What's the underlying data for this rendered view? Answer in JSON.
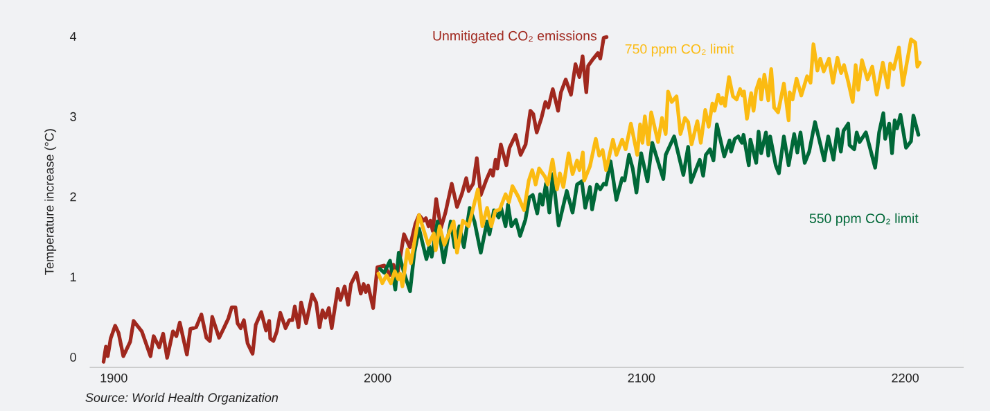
{
  "chart_data": {
    "type": "line",
    "ylabel": "Temperature increase (°C)",
    "xlim": [
      1891,
      2222
    ],
    "ylim": [
      -0.13,
      4
    ],
    "xticks": [
      1900,
      2000,
      2100,
      2200
    ],
    "yticks": [
      0,
      1,
      2,
      3,
      4
    ],
    "grid": false,
    "legend": false,
    "marker": "none",
    "line_style": "solid",
    "series": [
      {
        "name": "Unmitigated CO₂ emissions",
        "color": "#a0281e",
        "x": [
          1896.1,
          1897.0,
          1897.7,
          1898.8,
          1900.5,
          1901.8,
          1903.6,
          1906.2,
          1907.5,
          1910.6,
          1913.9,
          1915.1,
          1917.2,
          1918.7,
          1920.2,
          1922.4,
          1923.7,
          1925.0,
          1927.7,
          1929.0,
          1931.2,
          1933.2,
          1935.1,
          1936.4,
          1937.3,
          1939.9,
          1941.7,
          1943.4,
          1944.7,
          1946.1,
          1946.9,
          1948.1,
          1949.3,
          1950.7,
          1952.6,
          1953.8,
          1955.9,
          1957.7,
          1958.9,
          1959.3,
          1960.5,
          1961.8,
          1963.1,
          1965.1,
          1966.5,
          1967.7,
          1968.6,
          1970.0,
          1971.0,
          1972.9,
          1975.2,
          1976.7,
          1978.0,
          1979.1,
          1980.2,
          1981.5,
          1982.6,
          1984.9,
          1985.9,
          1987.5,
          1988.8,
          1989.9,
          1992.0,
          1993.6,
          1994.7,
          1995.5,
          1996.4,
          1998.3,
          1999.9,
          2002.5,
          2004.7,
          2006.0,
          2007.3,
          2008.2,
          2010.0,
          2012.2,
          2014.3,
          2015.7,
          2017.4,
          2018.3,
          2019.3,
          2020.0,
          2020.9,
          2022.2,
          2024.0,
          2025.7,
          2028.1,
          2030.1,
          2031.9,
          2033.6,
          2034.5,
          2036.2,
          2037.6,
          2039.1,
          2041.1,
          2042.8,
          2043.7,
          2044.7,
          2045.4,
          2046.7,
          2048.8,
          2050.0,
          2052.3,
          2054.2,
          2056.1,
          2057.9,
          2059.0,
          2060.3,
          2062.1,
          2063.6,
          2064.7,
          2066.4,
          2068.4,
          2069.5,
          2071.3,
          2073.3,
          2075.0,
          2076.5,
          2077.7,
          2079.1,
          2079.8,
          2081.3,
          2083.5,
          2084.4,
          2085.7,
          2086.8
        ],
        "values": [
          -0.06,
          0.13,
          0.01,
          0.23,
          0.39,
          0.3,
          0.01,
          0.19,
          0.45,
          0.32,
          0.01,
          0.26,
          0.12,
          0.29,
          -0.01,
          0.32,
          0.26,
          0.43,
          0.03,
          0.35,
          0.37,
          0.53,
          0.24,
          0.2,
          0.5,
          0.24,
          0.36,
          0.48,
          0.62,
          0.62,
          0.42,
          0.36,
          0.46,
          0.17,
          0.04,
          0.4,
          0.56,
          0.33,
          0.45,
          0.23,
          0.2,
          0.32,
          0.55,
          0.36,
          0.46,
          0.46,
          0.63,
          0.37,
          0.68,
          0.42,
          0.78,
          0.68,
          0.37,
          0.58,
          0.49,
          0.61,
          0.36,
          0.85,
          0.71,
          0.88,
          0.65,
          0.91,
          1.05,
          0.79,
          0.91,
          0.81,
          0.89,
          0.61,
          1.12,
          1.14,
          1.02,
          1.15,
          0.99,
          1.17,
          1.53,
          1.37,
          1.66,
          1.77,
          1.7,
          1.73,
          1.63,
          1.7,
          1.57,
          1.97,
          1.61,
          1.8,
          2.16,
          1.87,
          2.03,
          2.23,
          2.07,
          2.16,
          2.48,
          2.02,
          2.2,
          2.33,
          2.26,
          2.46,
          2.35,
          2.65,
          2.39,
          2.61,
          2.77,
          2.52,
          2.65,
          3.07,
          3.03,
          2.8,
          2.98,
          3.18,
          3.11,
          3.34,
          3.07,
          3.3,
          3.46,
          3.27,
          3.65,
          3.49,
          3.75,
          3.3,
          3.63,
          3.7,
          3.79,
          3.72,
          3.98,
          3.99
        ]
      },
      {
        "name": "550 ppm CO₂ limit",
        "color": "#006838",
        "x": [
          2000.8,
          2002.5,
          2004.7,
          2006.7,
          2008.0,
          2010.0,
          2012.3,
          2013.9,
          2015.7,
          2018.5,
          2019.6,
          2020.5,
          2022.7,
          2025.1,
          2027.7,
          2029.2,
          2031.0,
          2032.7,
          2034.9,
          2036.7,
          2039.1,
          2041.5,
          2042.4,
          2044.1,
          2045.9,
          2046.8,
          2048.5,
          2049.4,
          2050.7,
          2052.4,
          2054.0,
          2056.0,
          2057.5,
          2058.8,
          2060.5,
          2061.6,
          2062.5,
          2063.8,
          2065.1,
          2066.4,
          2068.6,
          2071.7,
          2073.9,
          2075.6,
          2077.4,
          2078.7,
          2080.5,
          2081.3,
          2083.1,
          2084.4,
          2085.7,
          2086.6,
          2088.3,
          2090.5,
          2092.7,
          2093.6,
          2095.3,
          2096.7,
          2098.1,
          2099.9,
          2102.3,
          2104.1,
          2108.3,
          2109.2,
          2112.4,
          2115.9,
          2117.7,
          2118.8,
          2122.1,
          2123.4,
          2124.4,
          2126.0,
          2127.3,
          2128.6,
          2131.4,
          2133.4,
          2134.0,
          2135.4,
          2136.7,
          2138.1,
          2138.7,
          2140.7,
          2141.3,
          2143.5,
          2144.4,
          2145.4,
          2147.2,
          2148.1,
          2148.8,
          2150.9,
          2152.1,
          2154.0,
          2155.8,
          2157.9,
          2159.1,
          2160.3,
          2161.9,
          2163.6,
          2165.8,
          2169.3,
          2170.8,
          2172.8,
          2174.3,
          2175.6,
          2176.6,
          2178.4,
          2178.9,
          2180.7,
          2181.6,
          2182.7,
          2185.1,
          2188.6,
          2190.1,
          2191.7,
          2192.4,
          2193.9,
          2195.0,
          2196.0,
          2196.9,
          2198.2,
          2200.3,
          2202.2,
          2203.1,
          2205.0
        ],
        "values": [
          1.1,
          1.05,
          1.2,
          0.84,
          1.3,
          1.05,
          0.82,
          1.3,
          1.6,
          1.22,
          1.38,
          1.25,
          1.69,
          1.18,
          1.69,
          1.37,
          1.63,
          1.37,
          1.86,
          1.69,
          1.3,
          1.69,
          1.53,
          1.83,
          1.74,
          1.86,
          1.63,
          1.9,
          1.63,
          1.71,
          1.51,
          1.71,
          1.99,
          2.02,
          1.79,
          2.03,
          1.9,
          2.16,
          1.8,
          2.28,
          1.64,
          2.07,
          1.8,
          2.15,
          2.19,
          1.86,
          2.12,
          1.84,
          2.15,
          2.09,
          2.16,
          2.15,
          2.44,
          1.96,
          2.23,
          2.2,
          2.52,
          2.35,
          2.05,
          2.54,
          2.19,
          2.67,
          2.22,
          2.52,
          2.75,
          2.27,
          2.62,
          2.18,
          2.46,
          2.26,
          2.52,
          2.59,
          2.45,
          2.9,
          2.5,
          2.7,
          2.56,
          2.72,
          2.75,
          2.67,
          2.77,
          2.39,
          2.71,
          2.42,
          2.81,
          2.54,
          2.8,
          2.51,
          2.75,
          2.39,
          2.29,
          2.75,
          2.39,
          2.78,
          2.55,
          2.8,
          2.42,
          2.56,
          2.93,
          2.45,
          2.75,
          2.46,
          2.84,
          2.56,
          2.82,
          2.91,
          2.64,
          2.59,
          2.8,
          2.68,
          2.8,
          2.36,
          2.8,
          3.04,
          2.72,
          2.91,
          2.54,
          2.95,
          2.85,
          3.02,
          2.61,
          2.69,
          3.01,
          2.77
        ]
      },
      {
        "name": "750 ppm CO₂ limit",
        "color": "#fbbb12",
        "x": [
          2000.3,
          2001.8,
          2003.4,
          2005.0,
          2006.5,
          2007.8,
          2008.5,
          2009.4,
          2011.3,
          2012.6,
          2015.7,
          2019.2,
          2021.3,
          2022.0,
          2023.5,
          2025.3,
          2028.8,
          2030.1,
          2032.3,
          2034.5,
          2038.0,
          2039.7,
          2041.5,
          2043.1,
          2044.6,
          2046.3,
          2048.5,
          2049.8,
          2051.1,
          2053.3,
          2055.5,
          2057.3,
          2058.6,
          2059.9,
          2061.2,
          2063.4,
          2064.5,
          2066.3,
          2068.0,
          2069.1,
          2070.4,
          2072.4,
          2073.9,
          2075.6,
          2076.5,
          2077.8,
          2078.3,
          2080.5,
          2082.7,
          2084.0,
          2085.3,
          2086.6,
          2089.2,
          2090.5,
          2092.7,
          2094.0,
          2096.0,
          2098.4,
          2099.5,
          2100.4,
          2101.3,
          2102.6,
          2103.7,
          2106.3,
          2107.8,
          2109.2,
          2110.1,
          2111.5,
          2113.3,
          2114.8,
          2116.5,
          2117.7,
          2119.0,
          2121.2,
          2122.5,
          2124.2,
          2125.5,
          2126.9,
          2127.7,
          2129.1,
          2130.2,
          2130.8,
          2131.7,
          2133.2,
          2134.7,
          2136.1,
          2137.4,
          2138.3,
          2138.9,
          2140.0,
          2141.6,
          2142.5,
          2143.5,
          2144.8,
          2145.4,
          2146.6,
          2148.1,
          2149.2,
          2150.3,
          2151.8,
          2154.0,
          2155.8,
          2156.2,
          2157.3,
          2158.8,
          2160.6,
          2162.8,
          2164.1,
          2165.2,
          2166.7,
          2167.8,
          2169.1,
          2171.1,
          2172.6,
          2174.3,
          2175.7,
          2176.8,
          2178.4,
          2180.1,
          2181.2,
          2182.2,
          2183.6,
          2185.7,
          2187.5,
          2189.2,
          2191.5,
          2193.4,
          2194.3,
          2195.6,
          2197.6,
          2199.1,
          2202.2,
          2203.8,
          2204.6,
          2205.5
        ],
        "values": [
          1.04,
          0.92,
          1.02,
          0.92,
          1.07,
          0.97,
          1.04,
          0.88,
          1.34,
          1.17,
          1.77,
          1.4,
          1.54,
          1.33,
          1.63,
          1.4,
          1.69,
          1.3,
          1.7,
          1.63,
          2.09,
          1.63,
          1.86,
          1.63,
          1.82,
          1.84,
          2.03,
          1.93,
          2.13,
          2.0,
          1.83,
          2.2,
          2.33,
          2.15,
          2.35,
          2.25,
          2.15,
          2.46,
          2.09,
          2.29,
          2.12,
          2.54,
          2.28,
          2.45,
          2.33,
          2.55,
          2.2,
          2.38,
          2.72,
          2.51,
          2.58,
          2.33,
          2.71,
          2.52,
          2.71,
          2.59,
          2.91,
          2.52,
          2.9,
          2.67,
          3.0,
          2.65,
          3.05,
          2.68,
          2.98,
          2.78,
          3.31,
          3.18,
          3.25,
          2.78,
          2.98,
          2.93,
          2.65,
          2.94,
          2.67,
          3.08,
          2.87,
          3.16,
          3.07,
          3.27,
          3.16,
          3.23,
          3.13,
          3.49,
          3.25,
          3.21,
          3.34,
          3.26,
          3.31,
          2.97,
          3.29,
          3.07,
          3.33,
          3.46,
          3.21,
          3.52,
          3.2,
          3.59,
          3.11,
          3.05,
          3.41,
          2.95,
          3.3,
          3.21,
          3.47,
          3.26,
          3.5,
          3.42,
          3.9,
          3.57,
          3.72,
          3.56,
          3.72,
          3.42,
          3.73,
          3.54,
          3.64,
          3.43,
          3.18,
          3.64,
          3.33,
          3.7,
          3.46,
          3.62,
          3.27,
          3.67,
          3.36,
          3.66,
          3.59,
          3.86,
          3.39,
          3.96,
          3.92,
          3.62,
          3.67
        ]
      }
    ],
    "annotations": [
      "Source: World Health Organization"
    ]
  }
}
